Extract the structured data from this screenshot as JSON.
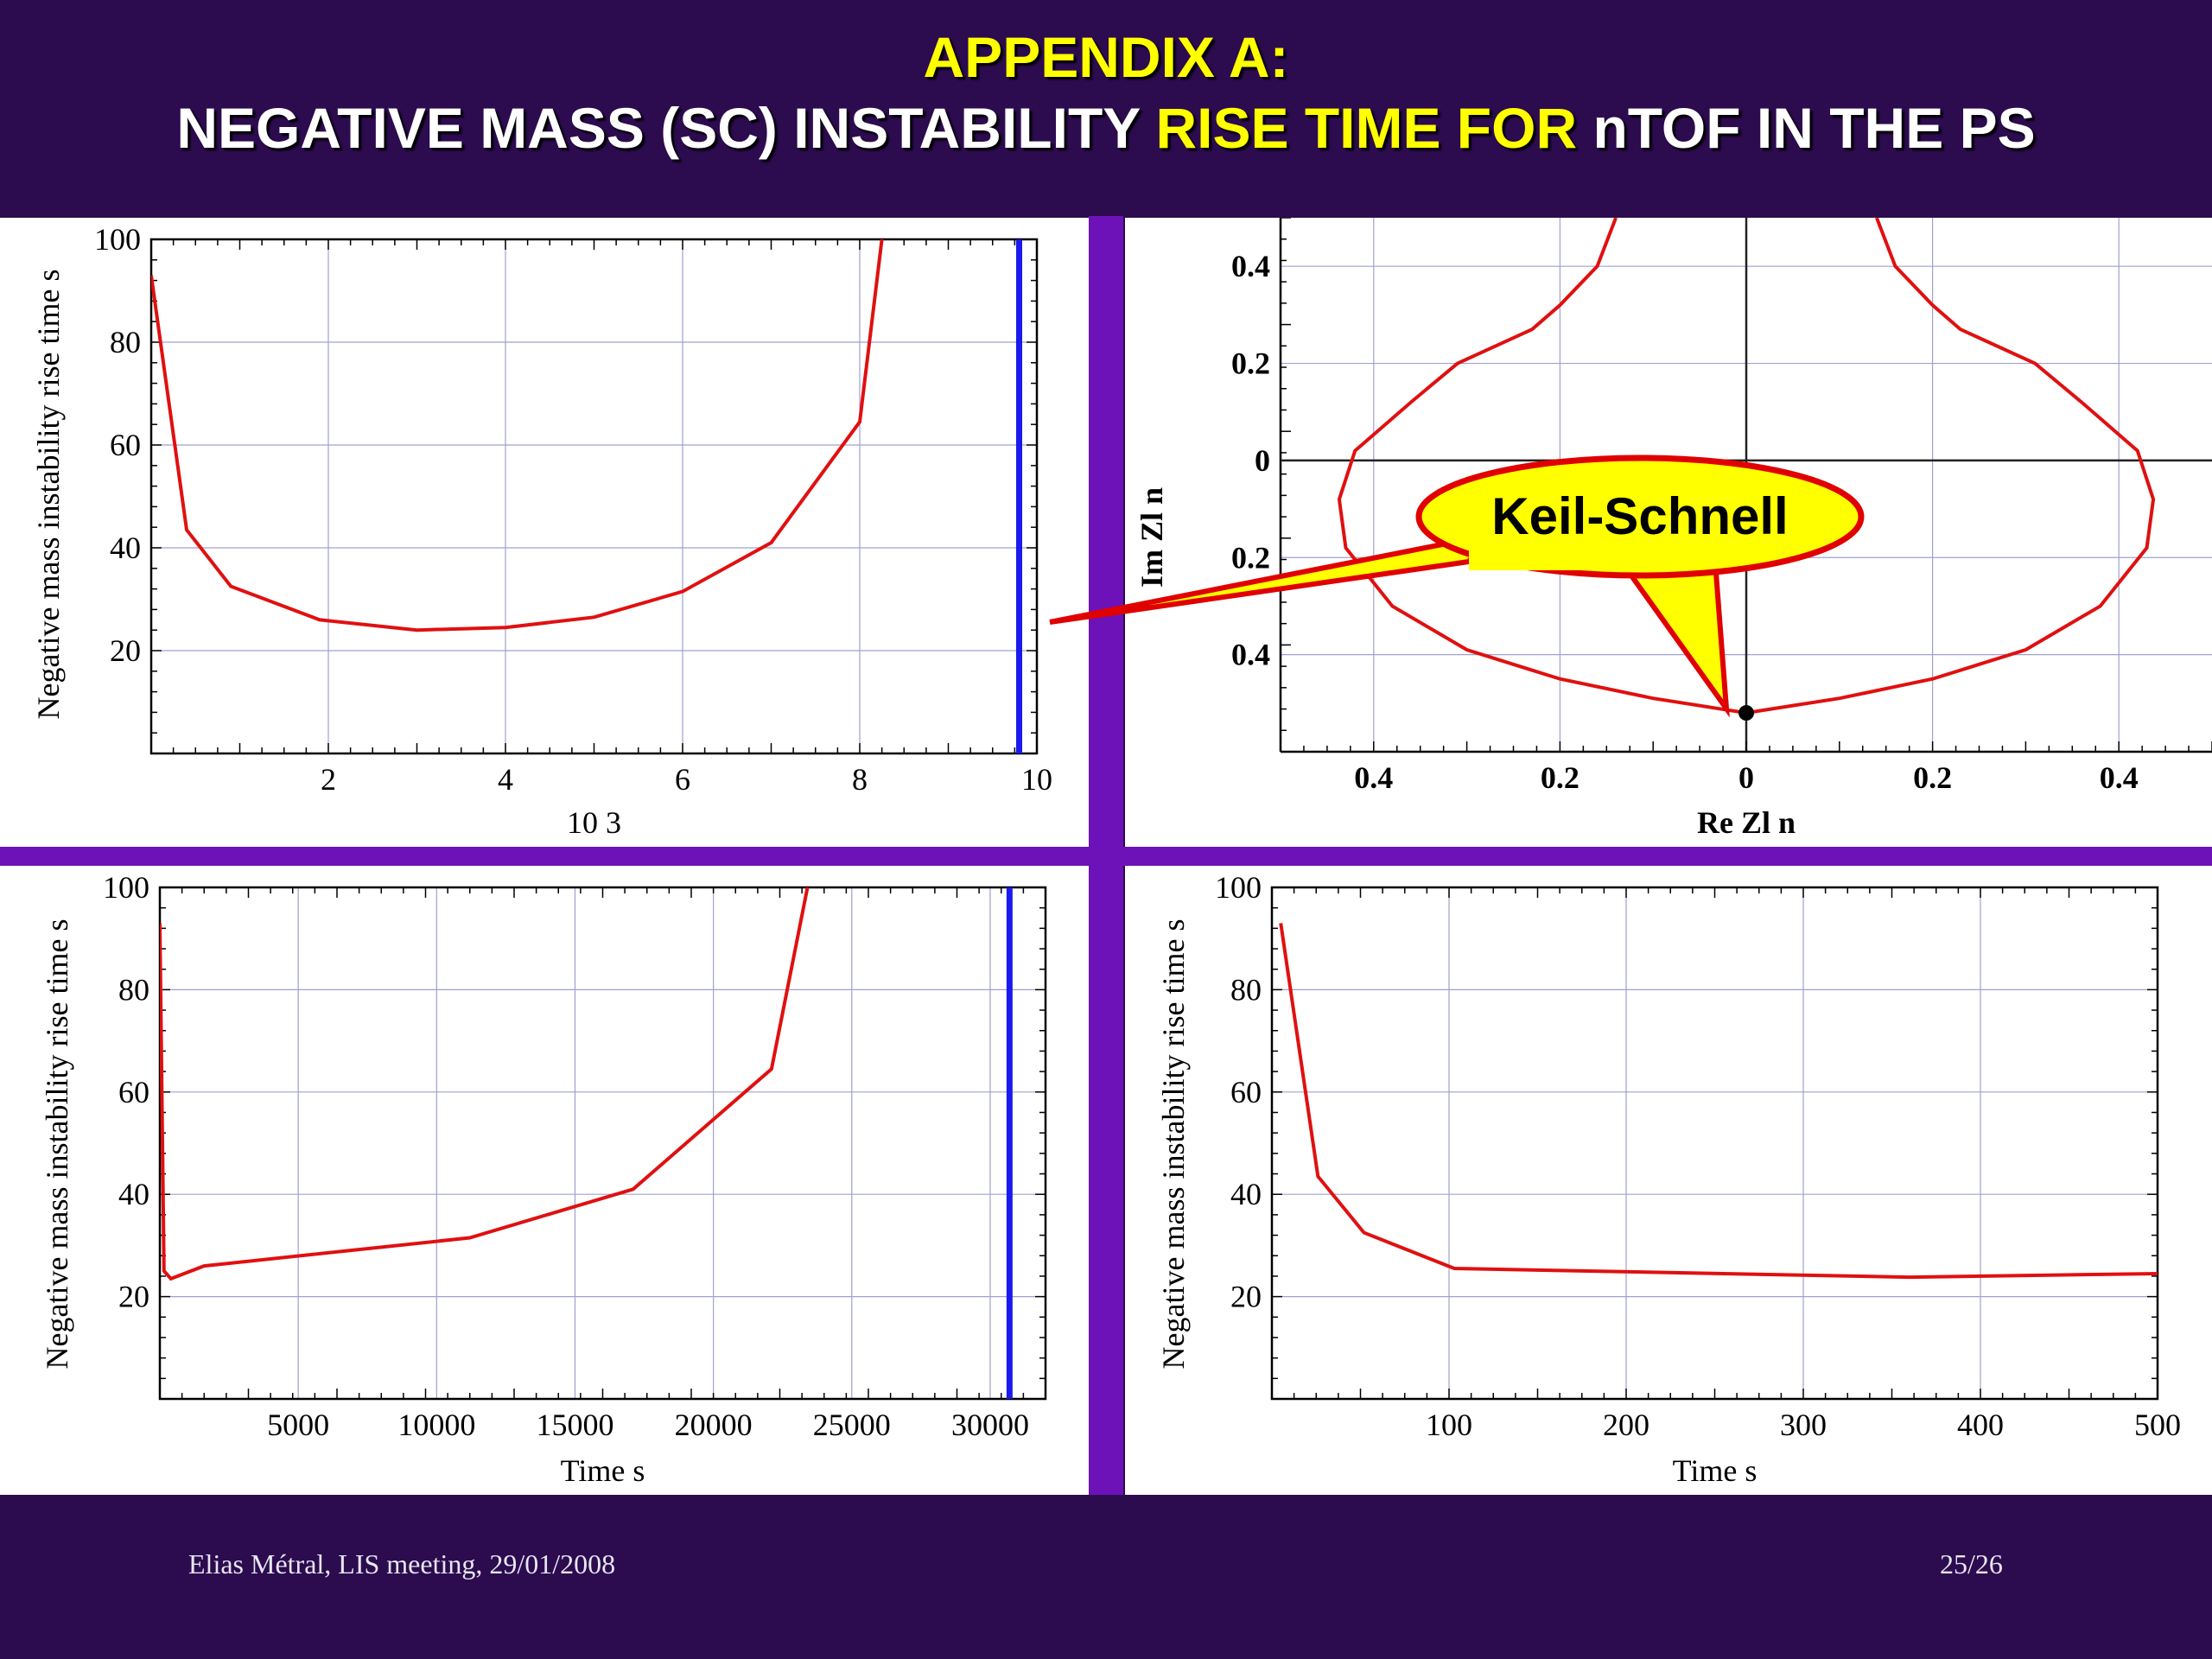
{
  "header": {
    "line1": "APPENDIX A:",
    "line2_a": "NEGATIVE MASS (SC) INSTABILITY ",
    "line2_highlight": "RISE TIME FOR",
    "line2_b": " nTOF IN THE PS"
  },
  "callout": {
    "label": "Keil-Schnell",
    "fill": "#ffff00",
    "stroke": "#e00000"
  },
  "footer": {
    "author": "Elias Métral, LIS meeting, 29/01/2008",
    "page": "25/26"
  },
  "colors": {
    "curve": "#e01010",
    "marker": "#1a1aee",
    "grid": "#a0a0d0",
    "background": "#2c0b4f"
  },
  "chart_data": [
    {
      "id": "top-left",
      "type": "line",
      "ylabel": "Negative mass instability  rise time   s",
      "xlabel": "  10 3",
      "xlim": [
        0,
        10
      ],
      "ylim": [
        0,
        100
      ],
      "xticks": [
        2,
        4,
        6,
        8,
        10
      ],
      "xtick_labels": [
        "2",
        "4",
        "6",
        "8",
        "10"
      ],
      "yticks": [
        20,
        40,
        60,
        80,
        100
      ],
      "ytick_labels": [
        "20",
        "40",
        "60",
        "80",
        "100"
      ],
      "series": [
        {
          "x": [
            0,
            0.4,
            0.9,
            1.9,
            3.0,
            4.0,
            5.0,
            6.0,
            7.0,
            8.0,
            8.25
          ],
          "y": [
            93,
            43.5,
            32.5,
            26,
            24,
            24.5,
            26.5,
            31.5,
            41,
            64.5,
            100
          ]
        }
      ],
      "vline": 9.8
    },
    {
      "id": "top-right",
      "type": "line",
      "ylabel": "  Im  Zl   n",
      "xlabel": "  Re  Zl   n",
      "xlim": [
        -0.5,
        0.5
      ],
      "ylim": [
        -0.6,
        0.5
      ],
      "xticks": [
        -0.4,
        -0.2,
        0,
        0.2,
        0.4
      ],
      "xtick_labels": [
        "0.4",
        "0.2",
        "0",
        "0.2",
        "0.4"
      ],
      "yticks": [
        -0.4,
        -0.2,
        0,
        0.2,
        0.4
      ],
      "ytick_labels": [
        "0.4",
        "0.2",
        "0",
        "0.2",
        "0.4"
      ],
      "series": [
        {
          "x": [
            -0.14,
            -0.16,
            -0.2,
            -0.23,
            -0.31,
            -0.36,
            -0.42,
            -0.437,
            -0.43,
            -0.38,
            -0.3,
            -0.2,
            -0.1,
            0,
            0.1,
            0.2,
            0.3,
            0.38,
            0.43,
            0.437,
            0.42,
            0.36,
            0.31,
            0.23,
            0.2,
            0.16,
            0.14
          ],
          "y": [
            0.5,
            0.4,
            0.32,
            0.27,
            0.2,
            0.12,
            0.02,
            -0.08,
            -0.18,
            -0.3,
            -0.39,
            -0.45,
            -0.49,
            -0.52,
            -0.49,
            -0.45,
            -0.39,
            -0.3,
            -0.18,
            -0.08,
            0.02,
            0.12,
            0.2,
            0.27,
            0.32,
            0.4,
            0.5
          ]
        }
      ],
      "point": {
        "x": 0,
        "y": -0.52
      }
    },
    {
      "id": "bottom-left",
      "type": "line",
      "ylabel": "Negative mass instability  rise time   s",
      "xlabel": "Time    s",
      "xlim": [
        0,
        32000
      ],
      "ylim": [
        0,
        100
      ],
      "xticks": [
        5000,
        10000,
        15000,
        20000,
        25000,
        30000
      ],
      "xtick_labels": [
        "5000",
        "10000",
        "15000",
        "20000",
        "25000",
        "30000"
      ],
      "yticks": [
        20,
        40,
        60,
        80,
        100
      ],
      "ytick_labels": [
        "20",
        "40",
        "60",
        "80",
        "100"
      ],
      "series": [
        {
          "x": [
            0,
            150,
            400,
            1600,
            11200,
            17100,
            22100,
            23400
          ],
          "y": [
            93,
            25,
            23.5,
            26,
            31.5,
            41,
            64.5,
            100
          ]
        }
      ],
      "vline": 30700
    },
    {
      "id": "bottom-right",
      "type": "line",
      "ylabel": "Negative mass instability  rise time   s",
      "xlabel": "Time    s",
      "xlim": [
        0,
        500
      ],
      "ylim": [
        0,
        100
      ],
      "xticks": [
        100,
        200,
        300,
        400,
        500
      ],
      "xtick_labels": [
        "100",
        "200",
        "300",
        "400",
        "500"
      ],
      "yticks": [
        20,
        40,
        60,
        80,
        100
      ],
      "ytick_labels": [
        "20",
        "40",
        "60",
        "80",
        "100"
      ],
      "series": [
        {
          "x": [
            5,
            26,
            52,
            103,
            360,
            500
          ],
          "y": [
            93,
            43.5,
            32.5,
            25.5,
            23.8,
            24.5
          ]
        }
      ]
    }
  ]
}
